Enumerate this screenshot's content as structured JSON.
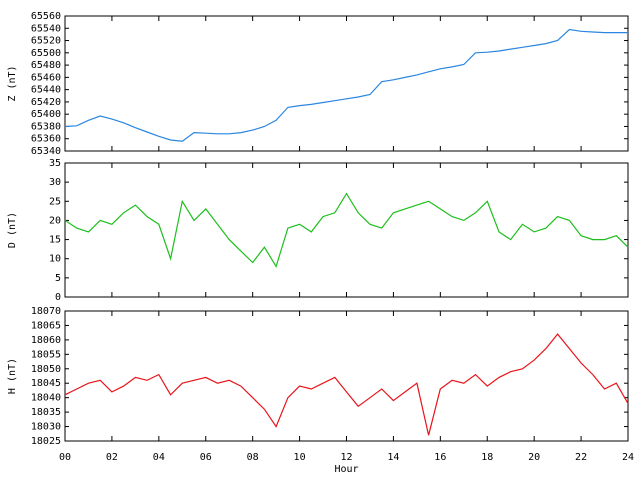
{
  "chart_data": [
    {
      "type": "line",
      "ylabel": "Z (nT)",
      "color": "#2a86e0",
      "x": [
        0,
        0.5,
        1,
        1.5,
        2,
        2.5,
        3,
        3.5,
        4,
        4.5,
        5,
        5.5,
        6,
        6.5,
        7,
        7.5,
        8,
        8.5,
        9,
        9.5,
        10,
        10.5,
        11,
        11.5,
        12,
        12.5,
        13,
        13.5,
        14,
        14.5,
        15,
        15.5,
        16,
        16.5,
        17,
        17.5,
        18,
        18.5,
        19,
        19.5,
        20,
        20.5,
        21,
        21.5,
        22,
        22.5,
        23,
        23.5,
        24
      ],
      "values": [
        65380,
        65381,
        65390,
        65397,
        65392,
        65386,
        65378,
        65371,
        65364,
        65358,
        65356,
        65370,
        65369,
        65368,
        65368,
        65370,
        65374,
        65380,
        65390,
        65411,
        65414,
        65416,
        65419,
        65422,
        65425,
        65428,
        65432,
        65453,
        65456,
        65460,
        65464,
        65469,
        65474,
        65477,
        65481,
        65500,
        65501,
        65503,
        65506,
        65509,
        65512,
        65515,
        65520,
        65538,
        65535,
        65534,
        65533,
        65533,
        65533
      ],
      "xlim": [
        0,
        24
      ],
      "xticks": [
        0,
        2,
        4,
        6,
        8,
        10,
        12,
        14,
        16,
        18,
        20,
        22,
        24
      ],
      "ylim": [
        65340,
        65560
      ],
      "yticks": [
        65340,
        65360,
        65380,
        65400,
        65420,
        65440,
        65460,
        65480,
        65500,
        65520,
        65540,
        65560
      ]
    },
    {
      "type": "line",
      "ylabel": "D (nT)",
      "color": "#1cbf1c",
      "x": [
        0,
        0.5,
        1,
        1.5,
        2,
        2.5,
        3,
        3.5,
        4,
        4.5,
        5,
        5.5,
        6,
        6.5,
        7,
        7.5,
        8,
        8.5,
        9,
        9.5,
        10,
        10.5,
        11,
        11.5,
        12,
        12.5,
        13,
        13.5,
        14,
        14.5,
        15,
        15.5,
        16,
        16.5,
        17,
        17.5,
        18,
        18.5,
        19,
        19.5,
        20,
        20.5,
        21,
        21.5,
        22,
        22.5,
        23,
        23.5,
        24
      ],
      "values": [
        20,
        18,
        17,
        20,
        19,
        22,
        24,
        21,
        19,
        10,
        25,
        20,
        23,
        19,
        15,
        12,
        9,
        13,
        8,
        18,
        19,
        17,
        21,
        22,
        27,
        22,
        19,
        18,
        22,
        23,
        24,
        25,
        23,
        21,
        20,
        22,
        25,
        17,
        15,
        19,
        17,
        18,
        21,
        20,
        16,
        15,
        15,
        16,
        13
      ],
      "xlim": [
        0,
        24
      ],
      "xticks": [
        0,
        2,
        4,
        6,
        8,
        10,
        12,
        14,
        16,
        18,
        20,
        22,
        24
      ],
      "ylim": [
        0,
        35
      ],
      "yticks": [
        0,
        5,
        10,
        15,
        20,
        25,
        30,
        35
      ]
    },
    {
      "type": "line",
      "ylabel": "H (nT)",
      "xlabel": "Hour",
      "color": "#e8141a",
      "x": [
        0,
        0.5,
        1,
        1.5,
        2,
        2.5,
        3,
        3.5,
        4,
        4.5,
        5,
        5.5,
        6,
        6.5,
        7,
        7.5,
        8,
        8.5,
        9,
        9.5,
        10,
        10.5,
        11,
        11.5,
        12,
        12.5,
        13,
        13.5,
        14,
        14.5,
        15,
        15.5,
        16,
        16.5,
        17,
        17.5,
        18,
        18.5,
        19,
        19.5,
        20,
        20.5,
        21,
        21.5,
        22,
        22.5,
        23,
        23.5,
        24
      ],
      "values": [
        18041,
        18043,
        18045,
        18046,
        18042,
        18044,
        18047,
        18046,
        18048,
        18041,
        18045,
        18046,
        18047,
        18045,
        18046,
        18044,
        18040,
        18036,
        18030,
        18040,
        18044,
        18043,
        18045,
        18047,
        18042,
        18037,
        18040,
        18043,
        18039,
        18042,
        18045,
        18027,
        18043,
        18046,
        18045,
        18048,
        18044,
        18047,
        18049,
        18050,
        18053,
        18057,
        18062,
        18057,
        18052,
        18048,
        18043,
        18045,
        18038
      ],
      "xlim": [
        0,
        24
      ],
      "xticks": [
        {
          "value": 0,
          "label": "00"
        },
        {
          "value": 2,
          "label": "02"
        },
        {
          "value": 4,
          "label": "04"
        },
        {
          "value": 6,
          "label": "06"
        },
        {
          "value": 8,
          "label": "08"
        },
        {
          "value": 10,
          "label": "10"
        },
        {
          "value": 12,
          "label": "12"
        },
        {
          "value": 14,
          "label": "14"
        },
        {
          "value": 16,
          "label": "16"
        },
        {
          "value": 18,
          "label": "18"
        },
        {
          "value": 20,
          "label": "20"
        },
        {
          "value": 22,
          "label": "22"
        },
        {
          "value": 24,
          "label": "24"
        }
      ],
      "ylim": [
        18025,
        18070
      ],
      "yticks": [
        18025,
        18030,
        18035,
        18040,
        18045,
        18050,
        18055,
        18060,
        18065,
        18070
      ]
    }
  ]
}
